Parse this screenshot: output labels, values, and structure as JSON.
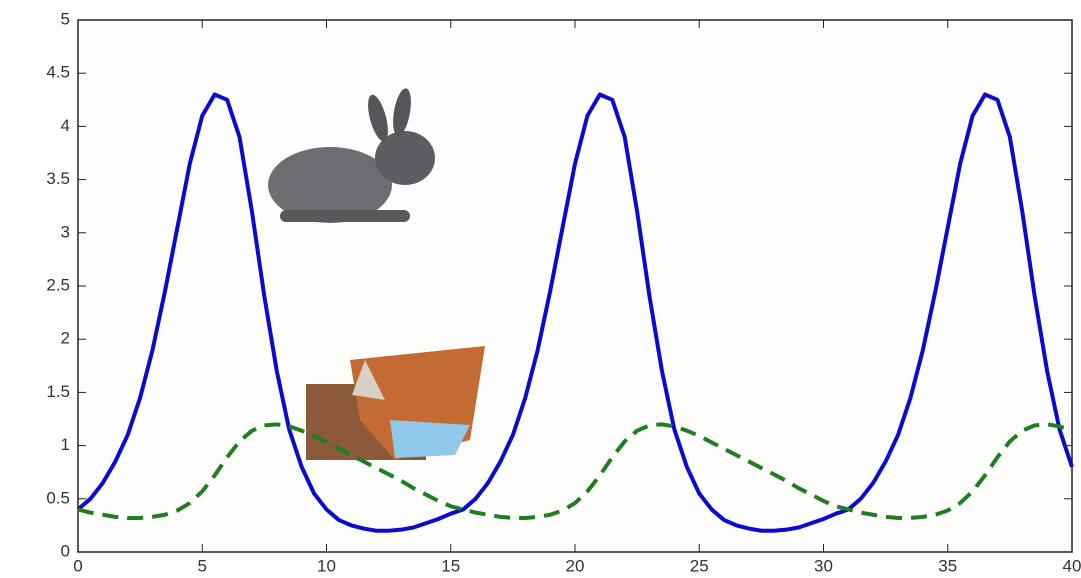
{
  "chart_data": {
    "type": "line",
    "x": [
      0,
      0.5,
      1,
      1.5,
      2,
      2.5,
      3,
      3.5,
      4,
      4.5,
      5,
      5.5,
      6,
      6.5,
      7,
      7.5,
      8,
      8.5,
      9,
      9.5,
      10,
      10.5,
      11,
      11.5,
      12,
      12.5,
      13,
      13.5,
      14,
      14.5,
      15,
      15.5,
      16,
      16.5,
      17,
      17.5,
      18,
      18.5,
      19,
      19.5,
      20,
      20.5,
      21,
      21.5,
      22,
      22.5,
      23,
      23.5,
      24,
      24.5,
      25,
      25.5,
      26,
      26.5,
      27,
      27.5,
      28,
      28.5,
      29,
      29.5,
      30,
      30.5,
      31,
      31.5,
      32,
      32.5,
      33,
      33.5,
      34,
      34.5,
      35,
      35.5,
      36,
      36.5,
      37,
      37.5,
      38,
      38.5,
      39,
      39.5,
      40
    ],
    "series": [
      {
        "color": "#0a0ad0",
        "dash": false,
        "values": [
          0.4,
          0.5,
          0.65,
          0.85,
          1.1,
          1.45,
          1.9,
          2.45,
          3.05,
          3.65,
          4.1,
          4.3,
          4.25,
          3.9,
          3.2,
          2.4,
          1.7,
          1.15,
          0.8,
          0.55,
          0.4,
          0.3,
          0.25,
          0.22,
          0.2,
          0.2,
          0.21,
          0.23,
          0.27,
          0.31,
          0.36,
          0.4,
          0.5,
          0.65,
          0.85,
          1.1,
          1.45,
          1.9,
          2.45,
          3.05,
          3.65,
          4.1,
          4.3,
          4.25,
          3.9,
          3.2,
          2.4,
          1.7,
          1.15,
          0.8,
          0.55,
          0.4,
          0.3,
          0.25,
          0.22,
          0.2,
          0.2,
          0.21,
          0.23,
          0.27,
          0.31,
          0.36,
          0.4,
          0.5,
          0.65,
          0.85,
          1.1,
          1.45,
          1.9,
          2.45,
          3.05,
          3.65,
          4.1,
          4.3,
          4.25,
          3.9,
          3.2,
          2.4,
          1.7,
          1.15,
          0.8
        ]
      },
      {
        "color": "#1f7f1f",
        "dash": true,
        "values": [
          0.4,
          0.37,
          0.35,
          0.33,
          0.32,
          0.32,
          0.33,
          0.35,
          0.39,
          0.46,
          0.57,
          0.72,
          0.89,
          1.04,
          1.14,
          1.19,
          1.2,
          1.18,
          1.14,
          1.09,
          1.03,
          0.97,
          0.91,
          0.85,
          0.79,
          0.73,
          0.67,
          0.6,
          0.54,
          0.48,
          0.43,
          0.4,
          0.37,
          0.35,
          0.33,
          0.32,
          0.32,
          0.33,
          0.35,
          0.39,
          0.46,
          0.57,
          0.72,
          0.89,
          1.04,
          1.14,
          1.19,
          1.2,
          1.18,
          1.14,
          1.09,
          1.03,
          0.97,
          0.91,
          0.85,
          0.79,
          0.73,
          0.67,
          0.6,
          0.54,
          0.48,
          0.43,
          0.4,
          0.37,
          0.35,
          0.33,
          0.32,
          0.32,
          0.33,
          0.35,
          0.39,
          0.46,
          0.57,
          0.72,
          0.89,
          1.04,
          1.14,
          1.19,
          1.2,
          1.18,
          1.14
        ]
      }
    ],
    "xlim": [
      0,
      40
    ],
    "xticks": [
      0,
      5,
      10,
      15,
      20,
      25,
      30,
      35,
      40
    ],
    "ylim": [
      0,
      5
    ],
    "yticks": [
      0,
      0.5,
      1,
      1.5,
      2,
      2.5,
      3,
      3.5,
      4,
      4.5,
      5
    ]
  }
}
